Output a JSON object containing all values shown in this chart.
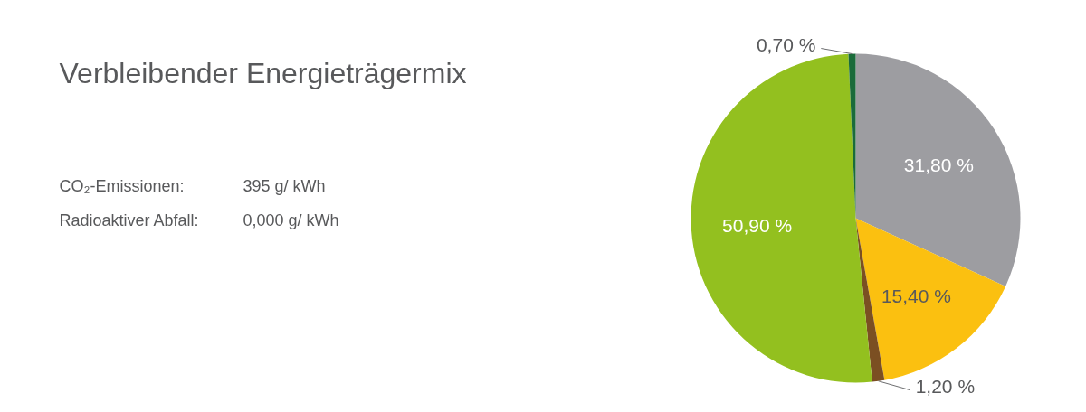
{
  "chart_data": {
    "type": "pie",
    "title": "Verbleibender Energieträgermix",
    "annotations": [
      "CO₂-Emissionen:",
      "395 g/ kWh",
      "Radioaktiver Abfall:",
      "0,000 g/ kWh"
    ],
    "categories": [
      null,
      null,
      null,
      null,
      null
    ],
    "values": [
      31.8,
      15.4,
      1.2,
      50.9,
      0.7
    ],
    "colors": [
      "#9d9da1",
      "#fbc010",
      "#7b4f22",
      "#93c01f",
      "#1a6b3a"
    ],
    "value_labels": [
      "31,80 %",
      "15,40 %",
      "1,20 %",
      "50,90 %",
      "0,70 %"
    ]
  }
}
